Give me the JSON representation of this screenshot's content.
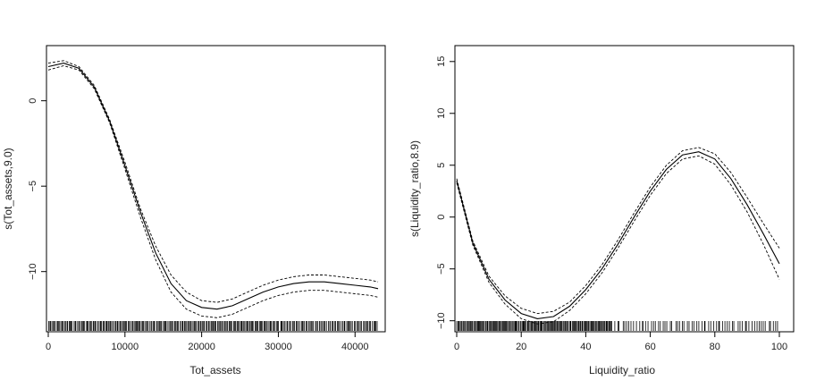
{
  "chart_data": [
    {
      "type": "line",
      "xlabel": "Tot_assets",
      "ylabel": "s(Tot_assets,9.0)",
      "xlim": [
        0,
        43000
      ],
      "ylim": [
        -13,
        2.6
      ],
      "xticks": [
        0,
        10000,
        20000,
        30000,
        40000
      ],
      "yticks": [
        0,
        -5,
        -10
      ],
      "grid": false,
      "legend": "none",
      "series": [
        {
          "style": "solid",
          "x": [
            0,
            2000,
            4000,
            6000,
            8000,
            10000,
            12000,
            14000,
            16000,
            18000,
            20000,
            22000,
            24000,
            26000,
            28000,
            30000,
            32000,
            34000,
            36000,
            38000,
            40000,
            42000,
            43000
          ],
          "y": [
            2.0,
            2.2,
            1.9,
            0.8,
            -1.2,
            -3.8,
            -6.5,
            -8.9,
            -10.7,
            -11.7,
            -12.1,
            -12.2,
            -12.0,
            -11.6,
            -11.2,
            -10.9,
            -10.7,
            -10.6,
            -10.6,
            -10.7,
            -10.8,
            -10.9,
            -11.0
          ]
        },
        {
          "style": "dashed",
          "x": [
            0,
            2000,
            4000,
            6000,
            8000,
            10000,
            12000,
            14000,
            16000,
            18000,
            20000,
            22000,
            24000,
            26000,
            28000,
            30000,
            32000,
            34000,
            36000,
            38000,
            40000,
            42000,
            43000
          ],
          "y": [
            2.2,
            2.35,
            2.0,
            0.9,
            -1.1,
            -3.6,
            -6.3,
            -8.5,
            -10.2,
            -11.2,
            -11.7,
            -11.8,
            -11.6,
            -11.2,
            -10.8,
            -10.5,
            -10.3,
            -10.2,
            -10.2,
            -10.3,
            -10.4,
            -10.5,
            -10.6
          ]
        },
        {
          "style": "dashed",
          "x": [
            0,
            2000,
            4000,
            6000,
            8000,
            10000,
            12000,
            14000,
            16000,
            18000,
            20000,
            22000,
            24000,
            26000,
            28000,
            30000,
            32000,
            34000,
            36000,
            38000,
            40000,
            42000,
            43000
          ],
          "y": [
            1.8,
            2.05,
            1.8,
            0.7,
            -1.3,
            -4.0,
            -6.8,
            -9.3,
            -11.2,
            -12.2,
            -12.6,
            -12.7,
            -12.5,
            -12.1,
            -11.7,
            -11.4,
            -11.2,
            -11.1,
            -11.1,
            -11.2,
            -11.3,
            -11.4,
            -11.5
          ]
        }
      ],
      "rug": [
        {
          "start": 0,
          "end": 29500,
          "count": 200
        },
        {
          "start": 29500,
          "end": 43000,
          "count": 80
        }
      ]
    },
    {
      "type": "line",
      "xlabel": "Liquidity_ratio",
      "ylabel": "s(Liquidity_ratio,8.9)",
      "xlim": [
        0,
        100
      ],
      "ylim": [
        -10.2,
        15.5
      ],
      "xticks": [
        0,
        20,
        40,
        60,
        80,
        100
      ],
      "yticks": [
        -10,
        -5,
        0,
        5,
        10,
        15
      ],
      "grid": false,
      "legend": "none",
      "series": [
        {
          "style": "solid",
          "x": [
            0,
            5,
            10,
            15,
            20,
            25,
            30,
            35,
            40,
            45,
            50,
            55,
            60,
            65,
            70,
            75,
            80,
            85,
            90,
            95,
            100
          ],
          "y": [
            3.5,
            -2.5,
            -6.0,
            -8.0,
            -9.3,
            -9.8,
            -9.6,
            -8.6,
            -7.0,
            -5.0,
            -2.6,
            0.0,
            2.5,
            4.6,
            6.0,
            6.3,
            5.6,
            3.7,
            1.2,
            -1.6,
            -4.5
          ]
        },
        {
          "style": "dashed",
          "x": [
            0,
            5,
            10,
            15,
            20,
            25,
            30,
            35,
            40,
            45,
            50,
            55,
            60,
            65,
            70,
            75,
            80,
            85,
            90,
            95,
            100
          ],
          "y": [
            3.7,
            -2.3,
            -5.7,
            -7.6,
            -8.8,
            -9.3,
            -9.1,
            -8.2,
            -6.6,
            -4.6,
            -2.2,
            0.4,
            2.9,
            5.0,
            6.4,
            6.7,
            6.1,
            4.3,
            1.9,
            -0.6,
            -3.0
          ]
        },
        {
          "style": "dashed",
          "x": [
            0,
            5,
            10,
            15,
            20,
            25,
            30,
            35,
            40,
            45,
            50,
            55,
            60,
            65,
            70,
            75,
            80,
            85,
            90,
            95,
            100
          ],
          "y": [
            3.3,
            -2.7,
            -6.3,
            -8.4,
            -9.8,
            -10.3,
            -10.1,
            -9.0,
            -7.4,
            -5.4,
            -3.0,
            -0.4,
            2.1,
            4.2,
            5.6,
            5.9,
            5.1,
            3.1,
            0.5,
            -2.6,
            -6.0
          ]
        }
      ],
      "rug": [
        {
          "start": 0,
          "end": 48,
          "count": 170
        },
        {
          "start": 48,
          "end": 100,
          "count": 70
        }
      ]
    }
  ]
}
